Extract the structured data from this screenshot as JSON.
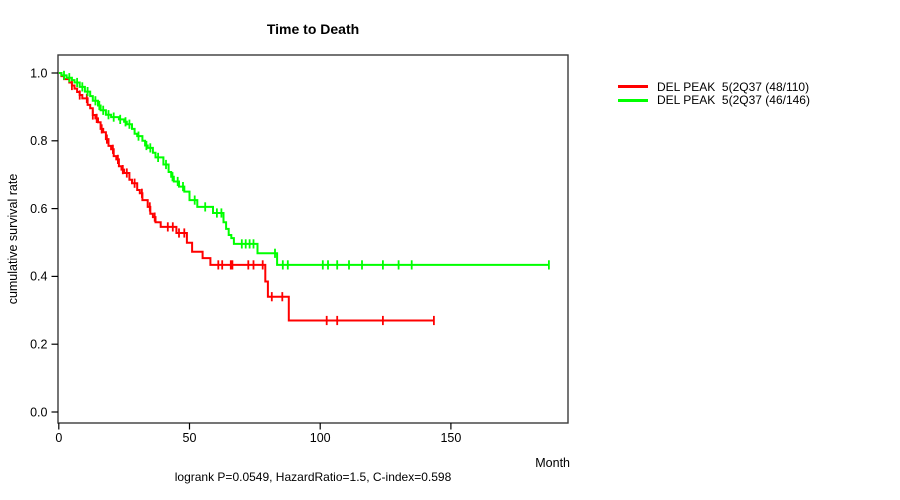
{
  "title": "Time to Death",
  "x_axis_label": "Month",
  "y_axis_label": "cumulative survival rate",
  "caption": "logrank P=0.0549, HazardRatio=1.5, C-index=0.598",
  "colors": {
    "group1": "#ff0000",
    "group2": "#00ff00",
    "frame": "#3a3a3a",
    "text": "#000000"
  },
  "legend": [
    {
      "label": "DEL PEAK  5(2Q37 (48/110)",
      "color": "#ff0000"
    },
    {
      "label": "DEL PEAK  5(2Q37 (46/146)",
      "color": "#00ff00"
    }
  ],
  "chart_data": {
    "type": "line",
    "subtype": "kaplan-meier-step",
    "title": "Time to Death",
    "xlabel": "Month",
    "ylabel": "cumulative survival rate",
    "xlim": [
      0,
      195
    ],
    "ylim": [
      0.0,
      1.0
    ],
    "x_ticks": [
      0,
      50,
      100,
      150
    ],
    "y_ticks": [
      0.0,
      0.2,
      0.4,
      0.6,
      0.8,
      1.0
    ],
    "grid": false,
    "legend_position": "right-outside",
    "series": [
      {
        "name": "DEL PEAK  5(2Q37 (48/110)",
        "color": "#ff0000",
        "events_total": "48/110",
        "end_time": 143.5,
        "steps": [
          [
            0,
            1.0
          ],
          [
            1,
            0.991
          ],
          [
            2,
            0.982
          ],
          [
            4,
            0.972
          ],
          [
            5,
            0.963
          ],
          [
            6,
            0.954
          ],
          [
            7,
            0.944
          ],
          [
            8,
            0.935
          ],
          [
            9,
            0.925
          ],
          [
            11,
            0.906
          ],
          [
            12,
            0.896
          ],
          [
            13,
            0.876
          ],
          [
            14,
            0.866
          ],
          [
            15,
            0.855
          ],
          [
            16,
            0.835
          ],
          [
            17,
            0.825
          ],
          [
            18,
            0.805
          ],
          [
            19,
            0.785
          ],
          [
            20,
            0.775
          ],
          [
            21,
            0.755
          ],
          [
            22,
            0.745
          ],
          [
            23,
            0.725
          ],
          [
            24,
            0.715
          ],
          [
            25,
            0.705
          ],
          [
            27,
            0.685
          ],
          [
            28,
            0.675
          ],
          [
            30,
            0.655
          ],
          [
            31,
            0.645
          ],
          [
            32,
            0.625
          ],
          [
            34,
            0.605
          ],
          [
            35,
            0.585
          ],
          [
            36,
            0.575
          ],
          [
            37,
            0.56
          ],
          [
            39,
            0.546
          ],
          [
            45,
            0.528
          ],
          [
            49,
            0.499
          ],
          [
            51,
            0.473
          ],
          [
            55,
            0.454
          ],
          [
            58,
            0.434
          ],
          [
            79,
            0.385
          ],
          [
            80,
            0.34
          ],
          [
            88,
            0.27
          ]
        ],
        "censor_times": [
          5,
          8,
          10.7,
          13,
          14.5,
          16.4,
          18.4,
          20.7,
          22.6,
          24.5,
          26,
          29,
          31.8,
          34.8,
          36.7,
          41.7,
          43.6,
          46,
          48,
          61,
          62.5,
          65.8,
          66.4,
          72.5,
          74.5,
          78,
          81.5,
          85.5,
          102.5,
          106.5,
          124,
          143.5
        ]
      },
      {
        "name": "DEL PEAK  5(2Q37 (46/146)",
        "color": "#00ff00",
        "events_total": "46/146",
        "end_time": 187.5,
        "steps": [
          [
            0,
            1.0
          ],
          [
            1,
            0.993
          ],
          [
            3,
            0.986
          ],
          [
            5,
            0.979
          ],
          [
            6,
            0.972
          ],
          [
            8,
            0.959
          ],
          [
            10,
            0.945
          ],
          [
            12,
            0.932
          ],
          [
            13,
            0.918
          ],
          [
            15,
            0.904
          ],
          [
            16,
            0.89
          ],
          [
            18,
            0.877
          ],
          [
            20,
            0.87
          ],
          [
            23,
            0.863
          ],
          [
            25,
            0.856
          ],
          [
            26,
            0.849
          ],
          [
            28,
            0.835
          ],
          [
            29,
            0.821
          ],
          [
            30,
            0.814
          ],
          [
            32,
            0.8
          ],
          [
            33,
            0.786
          ],
          [
            34,
            0.779
          ],
          [
            36,
            0.765
          ],
          [
            37,
            0.751
          ],
          [
            40,
            0.73
          ],
          [
            42,
            0.708
          ],
          [
            43,
            0.694
          ],
          [
            44,
            0.68
          ],
          [
            46,
            0.665
          ],
          [
            48,
            0.65
          ],
          [
            50,
            0.625
          ],
          [
            53,
            0.605
          ],
          [
            59,
            0.587
          ],
          [
            63,
            0.56
          ],
          [
            64,
            0.54
          ],
          [
            65,
            0.522
          ],
          [
            66,
            0.513
          ],
          [
            67,
            0.496
          ],
          [
            76,
            0.468
          ],
          [
            83.5,
            0.434
          ]
        ],
        "censor_times": [
          2,
          4,
          7,
          9,
          11,
          14,
          15.5,
          17,
          19,
          21,
          23.5,
          25.5,
          27,
          30.5,
          33.5,
          35,
          38,
          41,
          43.5,
          45.5,
          47.5,
          52,
          56,
          60.5,
          62.2,
          70,
          71.5,
          73,
          74.5,
          82.7,
          85.7,
          87.6,
          101,
          103,
          106.5,
          111,
          116,
          124,
          130,
          135,
          187.5
        ]
      }
    ]
  }
}
